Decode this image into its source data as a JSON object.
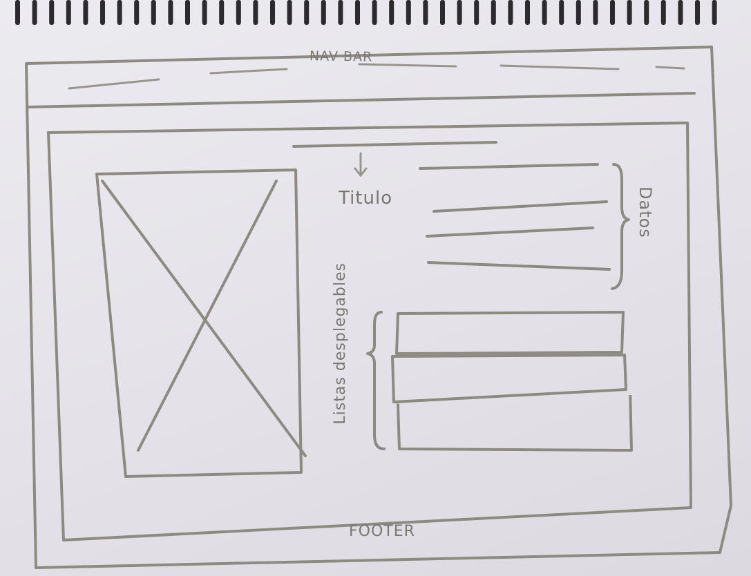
{
  "navbar": {
    "label": "NAV BAR"
  },
  "content": {
    "title_label": "Titulo",
    "data_label": "Datos",
    "dropdown_label": "Listas desplegables",
    "dropdowns": [
      {},
      {},
      {}
    ]
  },
  "footer": {
    "label": "FOOTER"
  },
  "colors": {
    "pencil": "#8d8a82",
    "paper": "#e9e6ec"
  }
}
